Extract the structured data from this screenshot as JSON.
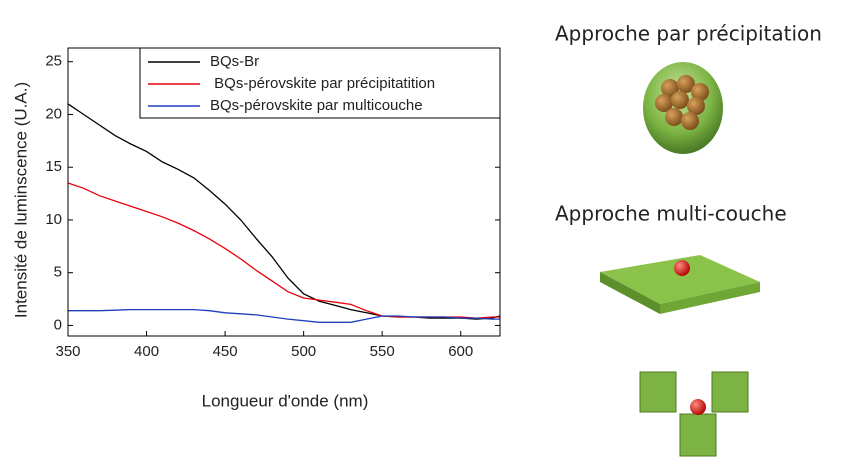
{
  "chart_data": {
    "type": "line",
    "xlabel": "Longueur d'onde (nm)",
    "ylabel": "Intensité de luminscence (U.A.)",
    "x": [
      350,
      360,
      370,
      380,
      390,
      400,
      410,
      420,
      430,
      440,
      450,
      460,
      470,
      480,
      490,
      500,
      510,
      520,
      530,
      540,
      550,
      560,
      570,
      580,
      590,
      600,
      610,
      620,
      625
    ],
    "series": [
      {
        "name": "BQs-Br",
        "color": "#000000",
        "values": [
          21,
          20,
          19,
          18,
          17.2,
          16.5,
          15.5,
          14.8,
          14,
          12.8,
          11.5,
          10,
          8.2,
          6.5,
          4.5,
          3,
          2.3,
          1.9,
          1.5,
          1.2,
          0.9,
          0.8,
          0.8,
          0.7,
          0.7,
          0.7,
          0.6,
          0.7,
          0.9
        ]
      },
      {
        "name": " BQs-pérovskite par précipitatition",
        "color": "#e8000b",
        "values": [
          13.5,
          13,
          12.3,
          11.8,
          11.3,
          10.8,
          10.3,
          9.7,
          9,
          8.2,
          7.3,
          6.3,
          5.2,
          4.2,
          3.2,
          2.6,
          2.4,
          2.2,
          2,
          1.4,
          0.9,
          0.8,
          0.8,
          0.8,
          0.8,
          0.8,
          0.7,
          0.8,
          0.8
        ]
      },
      {
        "name": "BQs-pérovskite par multicouche",
        "color": "#1f3fbf",
        "values": [
          1.4,
          1.4,
          1.4,
          1.45,
          1.5,
          1.5,
          1.5,
          1.5,
          1.5,
          1.4,
          1.2,
          1.1,
          1,
          0.8,
          0.6,
          0.45,
          0.3,
          0.3,
          0.3,
          0.6,
          0.9,
          0.9,
          0.8,
          0.8,
          0.8,
          0.7,
          0.7,
          0.6,
          0.6
        ]
      }
    ],
    "xlim": [
      350,
      625
    ],
    "ylim": [
      -1,
      26.3
    ],
    "xticks": [
      350,
      400,
      450,
      500,
      550,
      600
    ],
    "yticks": [
      0,
      5,
      10,
      15,
      20,
      25
    ]
  },
  "panel": {
    "precipitation_title": "Approche par précipitation",
    "multilayer_title": "Approche multi-couche"
  }
}
